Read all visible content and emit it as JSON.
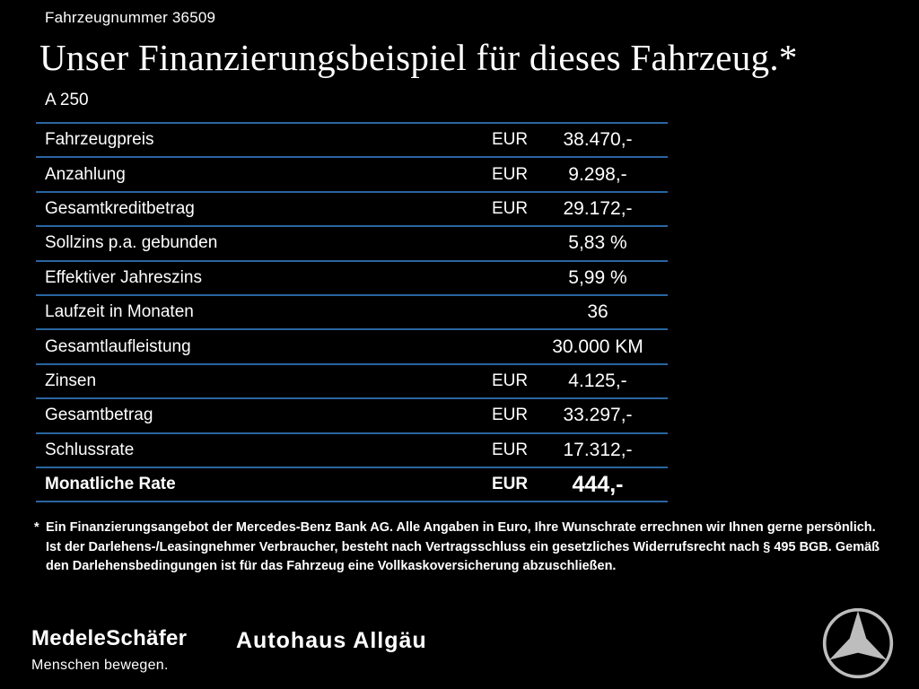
{
  "header": {
    "vehicle_number": "Fahrzeugnummer 36509",
    "title": "Unser Finanzierungsbeispiel für dieses Fahrzeug.*",
    "model": "A 250"
  },
  "table": {
    "rows": [
      {
        "label": "Fahrzeugpreis",
        "currency": "EUR",
        "value": "38.470,-",
        "bold": false
      },
      {
        "label": "Anzahlung",
        "currency": "EUR",
        "value": "9.298,-",
        "bold": false
      },
      {
        "label": "Gesamtkreditbetrag",
        "currency": "EUR",
        "value": "29.172,-",
        "bold": false
      },
      {
        "label": "Sollzins p.a. gebunden",
        "currency": "",
        "value": "5,83 %",
        "bold": false
      },
      {
        "label": "Effektiver Jahreszins",
        "currency": "",
        "value": "5,99 %",
        "bold": false
      },
      {
        "label": "Laufzeit in Monaten",
        "currency": "",
        "value": "36",
        "bold": false
      },
      {
        "label": "Gesamtlaufleistung",
        "currency": "",
        "value": "30.000 KM",
        "bold": false
      },
      {
        "label": "Zinsen",
        "currency": "EUR",
        "value": "4.125,-",
        "bold": false
      },
      {
        "label": "Gesamtbetrag",
        "currency": "EUR",
        "value": "33.297,-",
        "bold": false
      },
      {
        "label": "Schlussrate",
        "currency": "EUR",
        "value": "17.312,-",
        "bold": false
      },
      {
        "label": "Monatliche Rate",
        "currency": "EUR",
        "value": "444,-",
        "bold": true
      }
    ]
  },
  "footnote": {
    "marker": "*",
    "text": "Ein Finanzierungsangebot der Mercedes-Benz Bank AG. Alle Angaben in Euro, Ihre Wunschrate errechnen wir Ihnen gerne persönlich. Ist der Darlehens-/Leasingnehmer Verbraucher, besteht nach Vertragsschluss ein gesetzliches Widerrufsrecht nach § 495 BGB. Gemäß den Darlehensbedingungen ist für das Fahrzeug eine Vollkaskoversicherung abzuschließen."
  },
  "footer": {
    "dealer1_name": "MedeleSchäfer",
    "dealer1_tagline": "Menschen bewegen.",
    "dealer2_name": "Autohaus Allgäu",
    "brand_logo": "mercedes-star-icon"
  },
  "colors": {
    "background": "#000000",
    "text": "#ffffff",
    "divider": "#2a65a0",
    "logo_silver": "#bdbdbd"
  }
}
